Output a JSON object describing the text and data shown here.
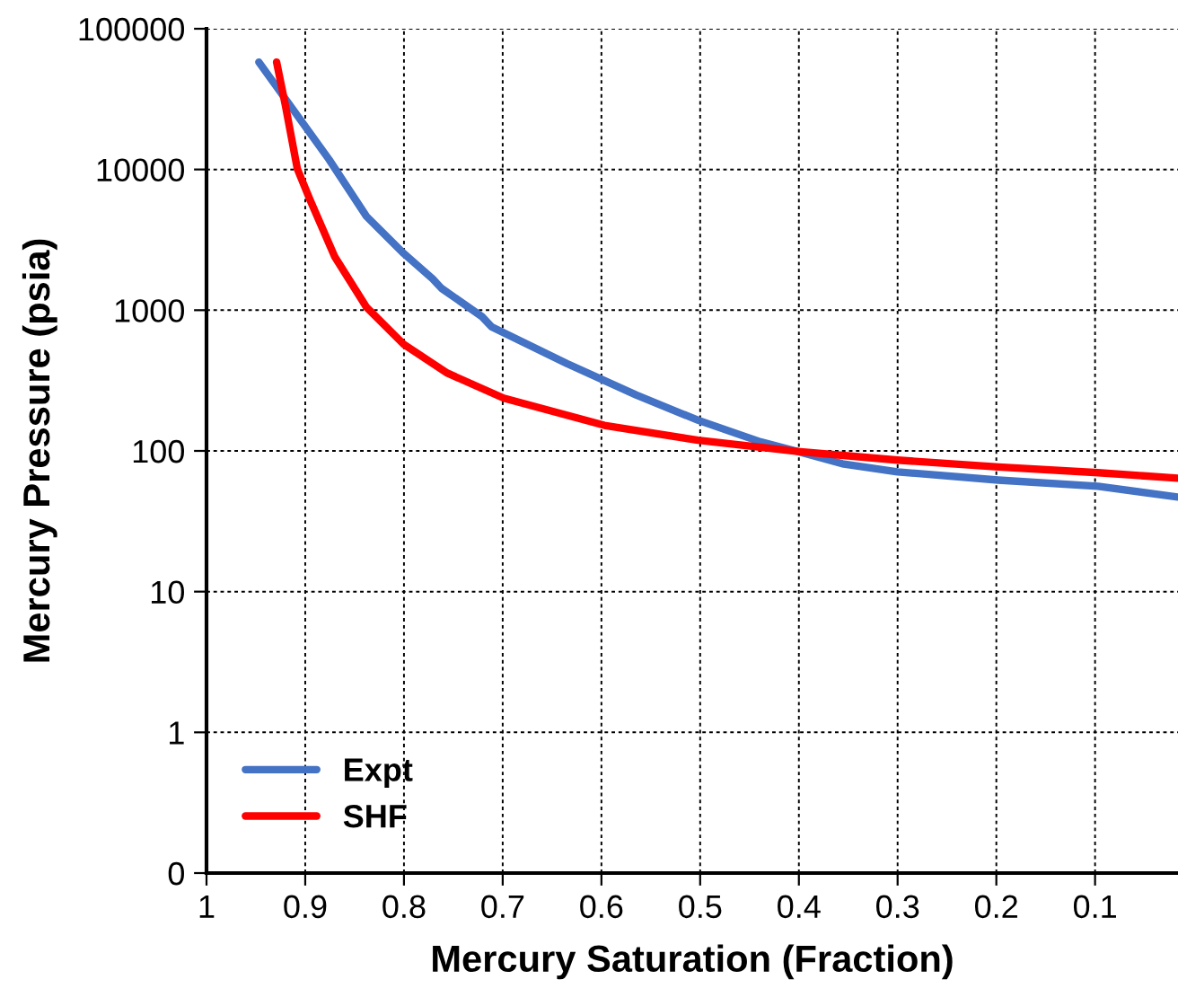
{
  "chart_data": {
    "type": "line",
    "xlabel": "Mercury Saturation (Fraction)",
    "ylabel": "Mercury Pressure (psia)",
    "log": "y",
    "grid": true,
    "legend": "bottom left",
    "marker": "none",
    "line_style": "solid",
    "xlim": [
      1,
      0.016
    ],
    "xticks": [
      1,
      0.9,
      0.8,
      0.7,
      0.6,
      0.5,
      0.4,
      0.3,
      0.2,
      0.1
    ],
    "ylim": [
      0.1,
      100000
    ],
    "yticks": [
      {
        "value": 0.1,
        "label": "0"
      },
      1,
      10,
      100,
      1000,
      10000,
      100000
    ],
    "series": [
      {
        "name": "Expt",
        "color": "#4472c4",
        "x": [
          0.947,
          0.876,
          0.838,
          0.8,
          0.771,
          0.762,
          0.721,
          0.711,
          0.635,
          0.565,
          0.502,
          0.439,
          0.401,
          0.356,
          0.3,
          0.198,
          0.097,
          0.016
        ],
        "values": [
          58000,
          11800,
          4640,
          2520,
          1670,
          1430,
          900,
          760,
          418,
          250,
          165,
          116,
          99,
          81,
          71,
          62,
          56,
          47
        ]
      },
      {
        "name": "SHF",
        "color": "#ff0000",
        "x": [
          0.929,
          0.92,
          0.908,
          0.895,
          0.87,
          0.838,
          0.8,
          0.756,
          0.699,
          0.597,
          0.502,
          0.401,
          0.3,
          0.198,
          0.097,
          0.016
        ],
        "values": [
          58000,
          28300,
          10100,
          6050,
          2390,
          1050,
          570,
          357,
          237,
          152,
          119,
          99,
          86,
          77,
          70,
          64
        ]
      }
    ]
  }
}
